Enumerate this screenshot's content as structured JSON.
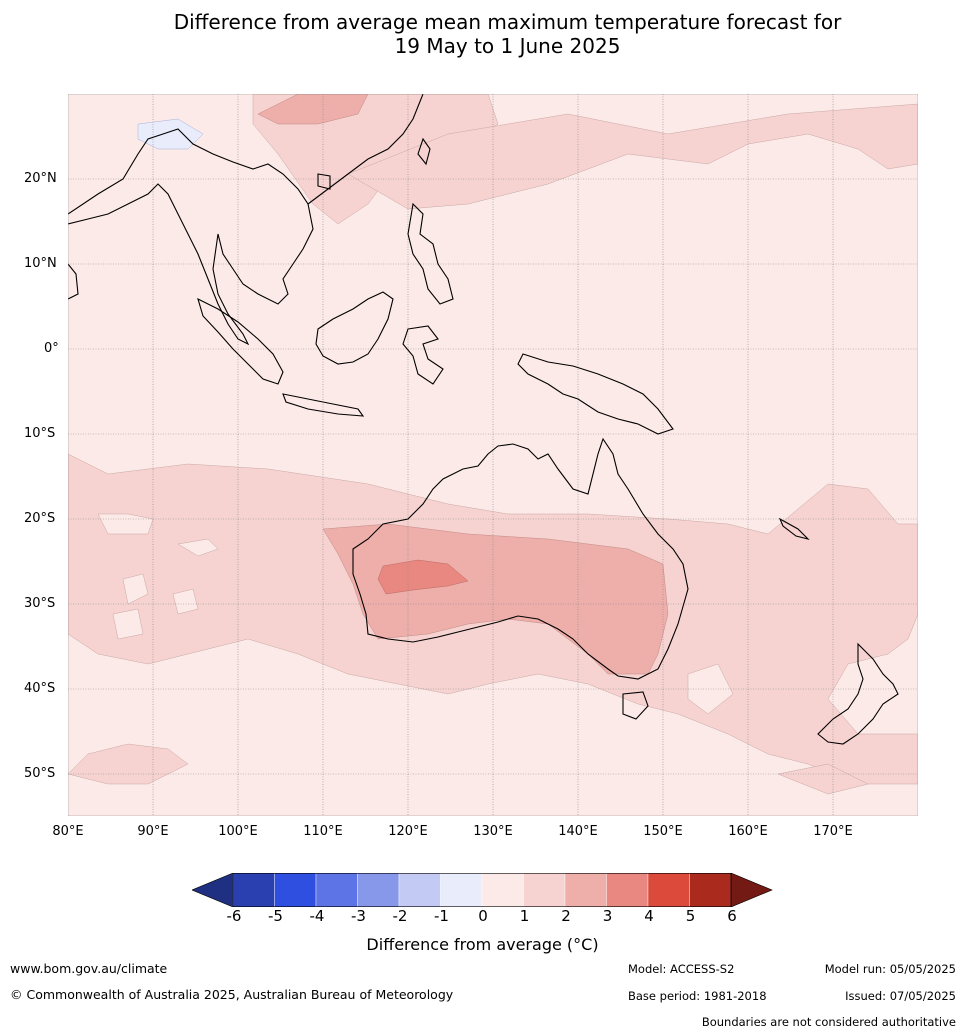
{
  "title": {
    "line1": "Difference from average mean maximum temperature forecast for",
    "line2": "19 May to 1 June 2025"
  },
  "map": {
    "lat_labels": [
      "20°N",
      "10°N",
      "0°",
      "10°S",
      "20°S",
      "30°S",
      "40°S",
      "50°S"
    ],
    "lon_labels": [
      "80°E",
      "90°E",
      "100°E",
      "110°E",
      "120°E",
      "130°E",
      "140°E",
      "150°E",
      "160°E",
      "170°E"
    ],
    "extent": {
      "lon": [
        80,
        180
      ],
      "lat": [
        -55,
        30
      ]
    }
  },
  "colorbar": {
    "ticks": [
      "-6",
      "-5",
      "-4",
      "-3",
      "-2",
      "-1",
      "0",
      "1",
      "2",
      "3",
      "4",
      "5",
      "6"
    ],
    "colors": [
      "#1f2f82",
      "#2a3fb0",
      "#2f4fe0",
      "#5c74e6",
      "#8798ea",
      "#c3caf3",
      "#e9ecfb",
      "#fceae8",
      "#f6d3d0",
      "#eeaeaa",
      "#e88880",
      "#dc4a3c",
      "#ab2a1e",
      "#731a14"
    ],
    "label": "Difference from average (°C)"
  },
  "footer": {
    "website": "www.bom.gov.au/climate",
    "copyright": "© Commonwealth of Australia 2025, Australian Bureau of Meteorology",
    "model": "Model: ACCESS-S2",
    "model_run": "Model run: 05/05/2025",
    "base_period": "Base period: 1981-2018",
    "issued": "Issued: 07/05/2025",
    "disclaimer": "Boundaries are not considered authoritative"
  }
}
